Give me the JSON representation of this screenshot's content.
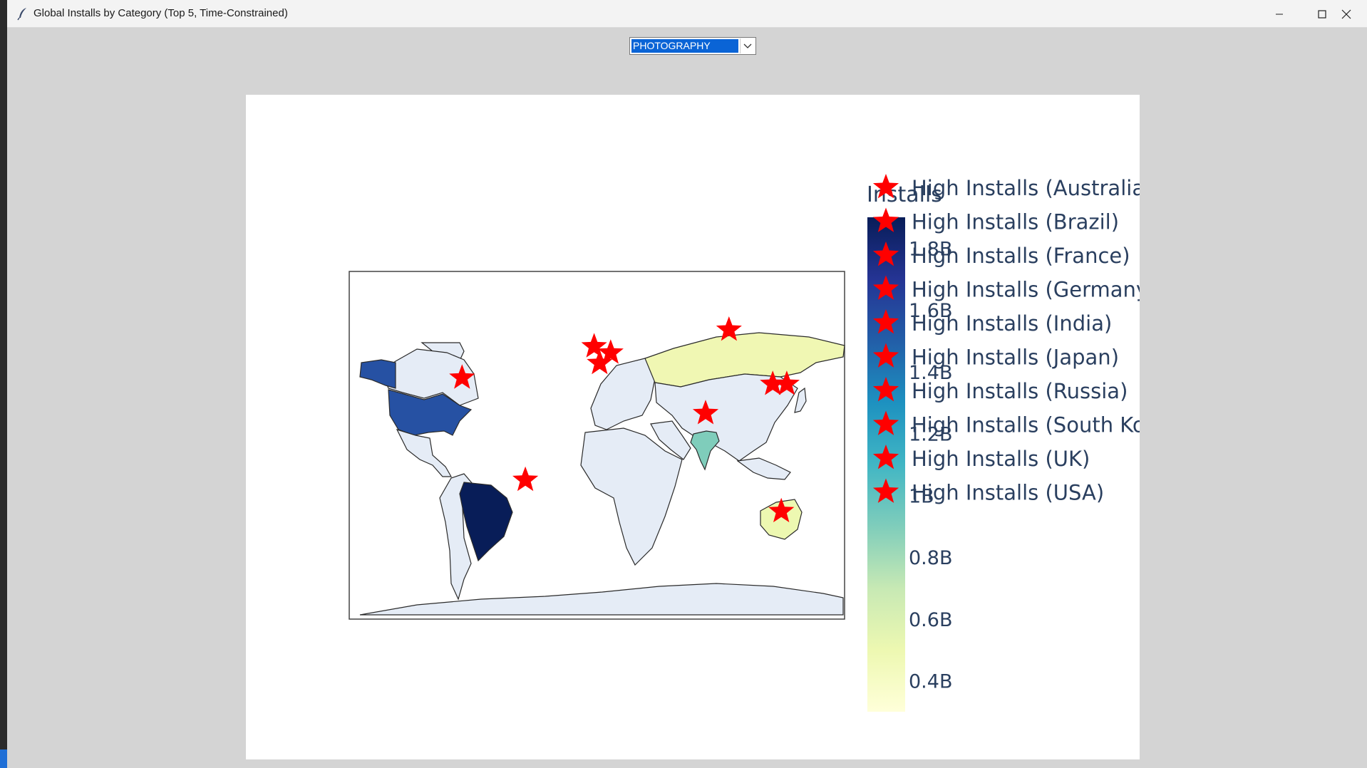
{
  "window": {
    "title": "Global Installs by Category (Top 5, Time-Constrained)",
    "controls": [
      "minimize",
      "maximize",
      "close"
    ]
  },
  "category_select": {
    "selected": "PHOTOGRAPHY"
  },
  "colors": {
    "star": "#ff0000",
    "land": "#e5ecf6",
    "border": "#2a2a2a",
    "selection": "#0a64d6"
  },
  "chart_data": {
    "type": "choropleth",
    "colorbar": {
      "title": "Installs",
      "colorscale": "YlGnBu",
      "range": [
        300000000,
        1900000000
      ],
      "tick_labels": [
        "1.8B",
        "1.6B",
        "1.4B",
        "1.2B",
        "1B",
        "0.8B",
        "0.6B",
        "0.4B"
      ]
    },
    "legend": {
      "position": "top-right",
      "entries": [
        "High Installs (Australia)",
        "High Installs (Brazil)",
        "High Installs (France)",
        "High Installs (Germany)",
        "High Installs (India)",
        "High Installs (Japan)",
        "High Installs (Russia)",
        "High Installs (South Korea)",
        "High Installs (UK)",
        "High Installs (USA)"
      ]
    },
    "regions": [
      {
        "country": "Brazil",
        "installs": 1850000000,
        "lon": -52,
        "lat": -10
      },
      {
        "country": "USA",
        "installs": 1500000000,
        "lon": -98,
        "lat": 39
      },
      {
        "country": "India",
        "installs": 900000000,
        "lon": 79,
        "lat": 22
      },
      {
        "country": "Australia",
        "installs": 450000000,
        "lon": 134,
        "lat": -25
      },
      {
        "country": "Russia",
        "installs": 350000000,
        "lon": 96,
        "lat": 62
      }
    ],
    "markers": [
      {
        "country": "Australia",
        "lon": 134,
        "lat": -25
      },
      {
        "country": "Brazil",
        "lon": -52,
        "lat": -10
      },
      {
        "country": "France",
        "lon": 2,
        "lat": 46
      },
      {
        "country": "Germany",
        "lon": 10,
        "lat": 51
      },
      {
        "country": "India",
        "lon": 79,
        "lat": 22
      },
      {
        "country": "Japan",
        "lon": 138,
        "lat": 36
      },
      {
        "country": "Russia",
        "lon": 96,
        "lat": 62
      },
      {
        "country": "South Korea",
        "lon": 127.8,
        "lat": 36
      },
      {
        "country": "UK",
        "lon": -2,
        "lat": 54
      },
      {
        "country": "USA",
        "lon": -98,
        "lat": 39
      }
    ]
  }
}
